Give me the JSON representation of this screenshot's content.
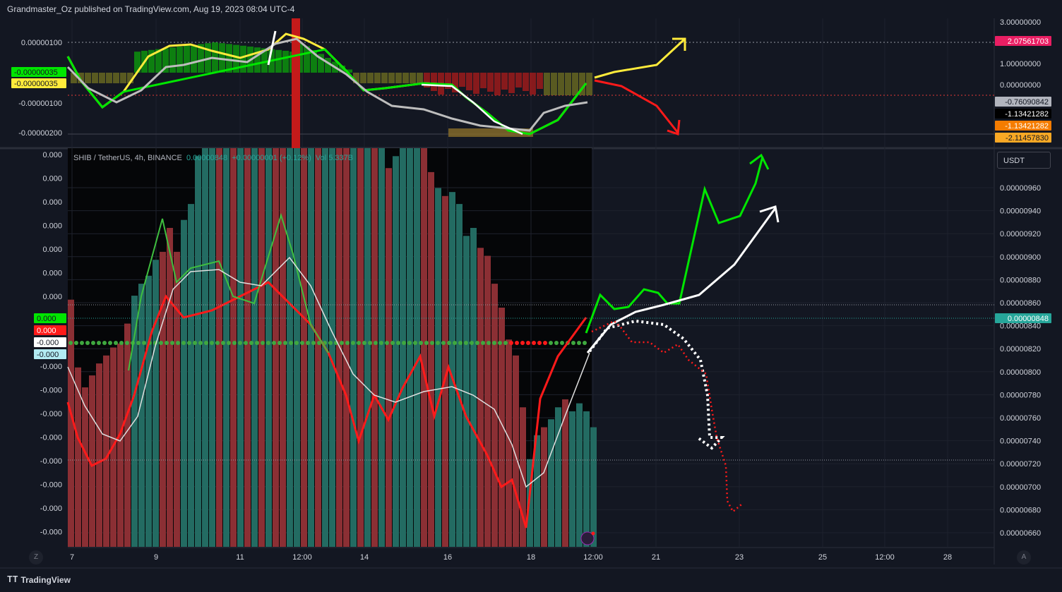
{
  "header": {
    "published": "Grandmaster_Oz published on TradingView.com, Aug 19, 2023 08:04 UTC-4"
  },
  "symbol": {
    "name": "SHIB / TetherUS, 4h, BINANCE",
    "price": "0.00000848",
    "change": "+0.00000001 (+0.12%)",
    "vol": "Vol 5.337B"
  },
  "currency_button": "USDT",
  "footer": {
    "logo": "TradingView"
  },
  "scale_buttons": {
    "left": "Z",
    "right": "A"
  },
  "colors": {
    "bg": "#131722",
    "up": "#26a69a",
    "down": "#ef5350",
    "bright_green": "#00e600",
    "bright_red": "#ff1a1a",
    "yellow": "#ffeb3b",
    "white": "#ffffff",
    "price_tag": "#26a69a",
    "pink": "#e91e63"
  },
  "chart_data": [
    {
      "type": "line",
      "title": "Upper oscillator pane",
      "right_axis_ticks": [
        "3.00000000",
        "1.00000000",
        "0.00000000"
      ],
      "left_axis_ticks": [
        "0.00000100",
        "-0.00000100",
        "-0.00000200"
      ],
      "right_labels": [
        {
          "text": "2.07561703",
          "color": "#e91e63"
        },
        {
          "text": "-0.76090842",
          "color": "#b2b5be"
        },
        {
          "text": "-1.13421282",
          "color": "#000000"
        },
        {
          "text": "-1.13421282",
          "color": "#f57c00"
        },
        {
          "text": "-2.11457830",
          "color": "#f9a825"
        }
      ],
      "left_labels": [
        {
          "text": "-0.00000035",
          "color": "#00e600"
        },
        {
          "text": "-0.00000035",
          "color": "#ffeb3b"
        }
      ]
    },
    {
      "type": "bar",
      "title": "SHIB / TetherUS, 4h, BINANCE",
      "x_ticks": [
        "7",
        "9",
        "11",
        "12:00",
        "14",
        "16",
        "18",
        "12:00",
        "21",
        "23",
        "25",
        "12:00",
        "28"
      ],
      "right_axis_ticks": [
        "0.00000960",
        "0.00000940",
        "0.00000920",
        "0.00000900",
        "0.00000880",
        "0.00000860",
        "0.00000840",
        "0.00000820",
        "0.00000800",
        "0.00000780",
        "0.00000760",
        "0.00000740",
        "0.00000720",
        "0.00000700",
        "0.00000680",
        "0.00000660"
      ],
      "left_axis_ticks": [
        "0.000",
        "0.000",
        "0.000",
        "0.000",
        "0.000",
        "0.000",
        "0.000",
        "-0.000",
        "-0.000",
        "-0.000",
        "-0.000",
        "-0.000",
        "-0.000",
        "-0.000",
        "-0.000"
      ],
      "left_labels": [
        {
          "text": "0.000",
          "color": "#00e600"
        },
        {
          "text": "0.000",
          "color": "#ff1a1a"
        },
        {
          "text": "-0.000",
          "color": "#ffffff"
        },
        {
          "text": "-0.000",
          "color": "#b2ebf2"
        }
      ],
      "price_label": "0.00000848",
      "histogram": [
        {
          "v": -0.62,
          "c": "down"
        },
        {
          "v": -0.45,
          "c": "down"
        },
        {
          "v": -0.4,
          "c": "down"
        },
        {
          "v": -0.43,
          "c": "down"
        },
        {
          "v": -0.46,
          "c": "down"
        },
        {
          "v": -0.48,
          "c": "down"
        },
        {
          "v": -0.5,
          "c": "down"
        },
        {
          "v": -0.51,
          "c": "down"
        },
        {
          "v": -0.56,
          "c": "down"
        },
        {
          "v": -0.63,
          "c": "up"
        },
        {
          "v": -0.66,
          "c": "up"
        },
        {
          "v": -0.68,
          "c": "up"
        },
        {
          "v": -0.72,
          "c": "up"
        },
        {
          "v": -0.74,
          "c": "down"
        },
        {
          "v": -0.8,
          "c": "down"
        },
        {
          "v": -0.74,
          "c": "down"
        },
        {
          "v": -0.82,
          "c": "up"
        },
        {
          "v": -0.86,
          "c": "up"
        },
        {
          "v": -0.98,
          "c": "up"
        },
        {
          "v": -1.0,
          "c": "up"
        },
        {
          "v": -1.0,
          "c": "up"
        },
        {
          "v": -1.0,
          "c": "down"
        },
        {
          "v": -1.0,
          "c": "up"
        },
        {
          "v": -1.0,
          "c": "down"
        },
        {
          "v": -1.0,
          "c": "up"
        },
        {
          "v": -1.0,
          "c": "down"
        },
        {
          "v": -1.0,
          "c": "up"
        },
        {
          "v": -1.0,
          "c": "down"
        },
        {
          "v": -1.0,
          "c": "up"
        },
        {
          "v": -1.0,
          "c": "down"
        },
        {
          "v": -1.0,
          "c": "down"
        },
        {
          "v": -1.0,
          "c": "up"
        },
        {
          "v": -1.0,
          "c": "up"
        },
        {
          "v": -1.0,
          "c": "down"
        },
        {
          "v": -1.0,
          "c": "up"
        },
        {
          "v": -1.0,
          "c": "down"
        },
        {
          "v": -1.0,
          "c": "up"
        },
        {
          "v": -1.0,
          "c": "up"
        },
        {
          "v": -1.0,
          "c": "down"
        },
        {
          "v": -1.0,
          "c": "down"
        },
        {
          "v": -1.0,
          "c": "up"
        },
        {
          "v": -1.0,
          "c": "down"
        },
        {
          "v": -1.0,
          "c": "up"
        },
        {
          "v": -1.0,
          "c": "down"
        },
        {
          "v": -1.0,
          "c": "up"
        },
        {
          "v": -0.95,
          "c": "down"
        },
        {
          "v": -0.98,
          "c": "up"
        },
        {
          "v": -1.0,
          "c": "up"
        },
        {
          "v": -1.0,
          "c": "up"
        },
        {
          "v": -1.0,
          "c": "up"
        },
        {
          "v": -1.0,
          "c": "down"
        },
        {
          "v": -0.94,
          "c": "down"
        },
        {
          "v": -0.9,
          "c": "up"
        },
        {
          "v": -0.88,
          "c": "down"
        },
        {
          "v": -0.89,
          "c": "up"
        },
        {
          "v": -0.86,
          "c": "up"
        },
        {
          "v": -0.78,
          "c": "up"
        },
        {
          "v": -0.8,
          "c": "up"
        },
        {
          "v": -0.75,
          "c": "down"
        },
        {
          "v": -0.73,
          "c": "down"
        },
        {
          "v": -0.66,
          "c": "down"
        },
        {
          "v": -0.6,
          "c": "down"
        },
        {
          "v": -0.52,
          "c": "down"
        },
        {
          "v": -0.48,
          "c": "down"
        },
        {
          "v": -0.35,
          "c": "down"
        },
        {
          "v": -0.22,
          "c": "up"
        },
        {
          "v": -0.28,
          "c": "up"
        },
        {
          "v": -0.3,
          "c": "down"
        },
        {
          "v": -0.32,
          "c": "up"
        },
        {
          "v": -0.35,
          "c": "up"
        },
        {
          "v": -0.37,
          "c": "down"
        },
        {
          "v": -0.34,
          "c": "up"
        },
        {
          "v": -0.36,
          "c": "up"
        },
        {
          "v": -0.34,
          "c": "up"
        },
        {
          "v": -0.3,
          "c": "up"
        }
      ]
    }
  ]
}
